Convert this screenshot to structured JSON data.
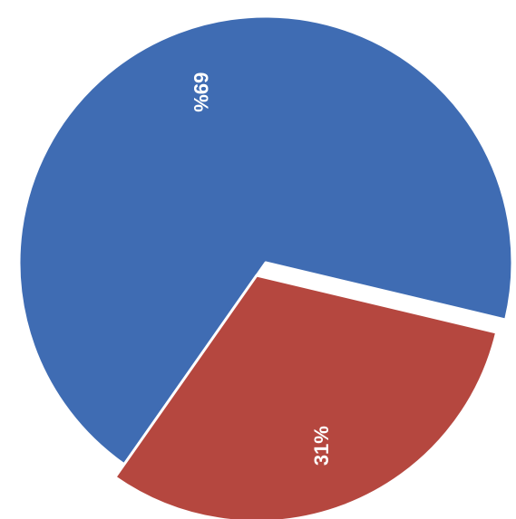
{
  "chart_data": {
    "type": "pie",
    "slices": [
      {
        "value": 69,
        "label": "69%",
        "color": "#3f6cb3"
      },
      {
        "value": 31,
        "label": "31%",
        "color": "#b5473f"
      }
    ],
    "legend": "none"
  }
}
